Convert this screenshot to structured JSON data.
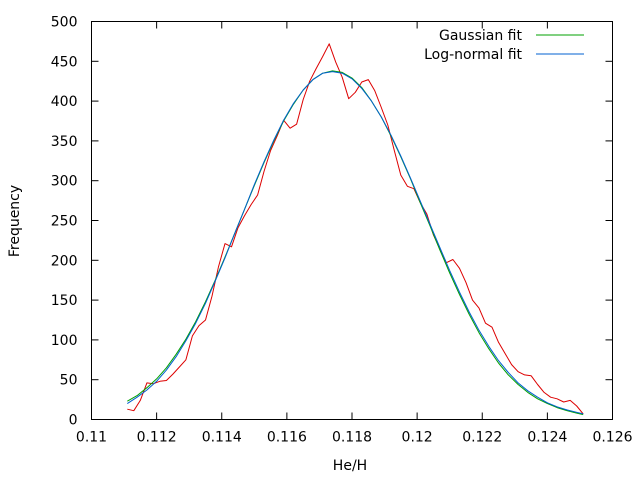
{
  "chart_data": {
    "type": "line",
    "title": "",
    "xlabel": "He/H",
    "ylabel": "Frequency",
    "xlim": [
      0.11,
      0.126
    ],
    "ylim": [
      0,
      500
    ],
    "grid": false,
    "legend_position": "top-right",
    "x_ticks": [
      {
        "value": 0.11,
        "label": "0.11"
      },
      {
        "value": 0.112,
        "label": "0.112"
      },
      {
        "value": 0.114,
        "label": "0.114"
      },
      {
        "value": 0.116,
        "label": "0.116"
      },
      {
        "value": 0.118,
        "label": "0.118"
      },
      {
        "value": 0.12,
        "label": "0.12"
      },
      {
        "value": 0.122,
        "label": "0.122"
      },
      {
        "value": 0.124,
        "label": "0.124"
      },
      {
        "value": 0.126,
        "label": "0.126"
      }
    ],
    "y_ticks": [
      {
        "value": 0,
        "label": "0"
      },
      {
        "value": 50,
        "label": "50"
      },
      {
        "value": 100,
        "label": "100"
      },
      {
        "value": 150,
        "label": "150"
      },
      {
        "value": 200,
        "label": "200"
      },
      {
        "value": 250,
        "label": "250"
      },
      {
        "value": 300,
        "label": "300"
      },
      {
        "value": 350,
        "label": "350"
      },
      {
        "value": 400,
        "label": "400"
      },
      {
        "value": 450,
        "label": "450"
      },
      {
        "value": 500,
        "label": "500"
      }
    ],
    "series": [
      {
        "name": "",
        "color": "#dd0000",
        "x": [
          0.1111,
          0.1113,
          0.1115,
          0.1117,
          0.1119,
          0.1121,
          0.1123,
          0.1125,
          0.1127,
          0.1129,
          0.1131,
          0.1133,
          0.1135,
          0.1137,
          0.1139,
          0.1141,
          0.1143,
          0.1145,
          0.1147,
          0.1149,
          0.1151,
          0.1153,
          0.1155,
          0.1157,
          0.1159,
          0.1161,
          0.1163,
          0.1165,
          0.1167,
          0.1169,
          0.1171,
          0.1173,
          0.1175,
          0.1177,
          0.1179,
          0.1181,
          0.1183,
          0.1185,
          0.1187,
          0.1189,
          0.1191,
          0.1193,
          0.1195,
          0.1197,
          0.1199,
          0.1201,
          0.1203,
          0.1205,
          0.1207,
          0.1209,
          0.1211,
          0.1213,
          0.1215,
          0.1217,
          0.1219,
          0.1221,
          0.1223,
          0.1225,
          0.1227,
          0.1229,
          0.1231,
          0.1233,
          0.1235,
          0.1237,
          0.1239,
          0.1241,
          0.1243,
          0.1245,
          0.1247,
          0.1249,
          0.1251
        ],
        "values": [
          13,
          11,
          24,
          46,
          45,
          48,
          49,
          57,
          66,
          75,
          105,
          118,
          125,
          155,
          192,
          221,
          217,
          241,
          256,
          270,
          282,
          312,
          338,
          356,
          376,
          366,
          371,
          402,
          425,
          441,
          456,
          472,
          449,
          430,
          403,
          411,
          424,
          427,
          413,
          392,
          370,
          338,
          307,
          293,
          290,
          272,
          258,
          232,
          214,
          197,
          201,
          190,
          172,
          150,
          140,
          121,
          116,
          97,
          83,
          69,
          60,
          56,
          55,
          44,
          34,
          28,
          26,
          22,
          24,
          17,
          7
        ]
      },
      {
        "name": "Gaussian fit",
        "color": "#00a000",
        "x": [
          0.1111,
          0.1114,
          0.1117,
          0.112,
          0.1123,
          0.1126,
          0.1129,
          0.1132,
          0.1135,
          0.1138,
          0.1141,
          0.1144,
          0.1147,
          0.115,
          0.1153,
          0.1156,
          0.1159,
          0.1162,
          0.1165,
          0.1168,
          0.1171,
          0.1174,
          0.1177,
          0.118,
          0.1183,
          0.1186,
          0.1189,
          0.1192,
          0.1195,
          0.1198,
          0.1201,
          0.1204,
          0.1207,
          0.121,
          0.1213,
          0.1216,
          0.1219,
          0.1222,
          0.1225,
          0.1228,
          0.1231,
          0.1234,
          0.1237,
          0.124,
          0.1243,
          0.1246,
          0.1249,
          0.1251
        ],
        "values": [
          23,
          30,
          40,
          51,
          65,
          82,
          101,
          123,
          148,
          175,
          204,
          234,
          264,
          294,
          323,
          350,
          375,
          396,
          414,
          427,
          435,
          438,
          436,
          429,
          417,
          400,
          380,
          356,
          330,
          302,
          272,
          243,
          213,
          184,
          157,
          132,
          109,
          89,
          71,
          56,
          44,
          34,
          26,
          20,
          15,
          11,
          8,
          6
        ]
      },
      {
        "name": "Log-normal fit",
        "color": "#0060d0",
        "x": [
          0.1111,
          0.1114,
          0.1117,
          0.112,
          0.1123,
          0.1126,
          0.1129,
          0.1132,
          0.1135,
          0.1138,
          0.1141,
          0.1144,
          0.1147,
          0.115,
          0.1153,
          0.1156,
          0.1159,
          0.1162,
          0.1165,
          0.1168,
          0.1171,
          0.1174,
          0.1177,
          0.118,
          0.1183,
          0.1186,
          0.1189,
          0.1192,
          0.1195,
          0.1198,
          0.1201,
          0.1204,
          0.1207,
          0.121,
          0.1213,
          0.1216,
          0.1219,
          0.1222,
          0.1225,
          0.1228,
          0.1231,
          0.1234,
          0.1237,
          0.124,
          0.1243,
          0.1246,
          0.1249,
          0.1251
        ],
        "values": [
          20,
          28,
          37,
          48,
          62,
          79,
          99,
          121,
          146,
          174,
          203,
          234,
          264,
          295,
          324,
          351,
          376,
          397,
          414,
          427,
          435,
          437,
          435,
          428,
          416,
          400,
          380,
          357,
          331,
          303,
          274,
          245,
          216,
          187,
          160,
          135,
          112,
          92,
          74,
          59,
          46,
          36,
          28,
          21,
          16,
          12,
          9,
          7
        ]
      }
    ]
  }
}
